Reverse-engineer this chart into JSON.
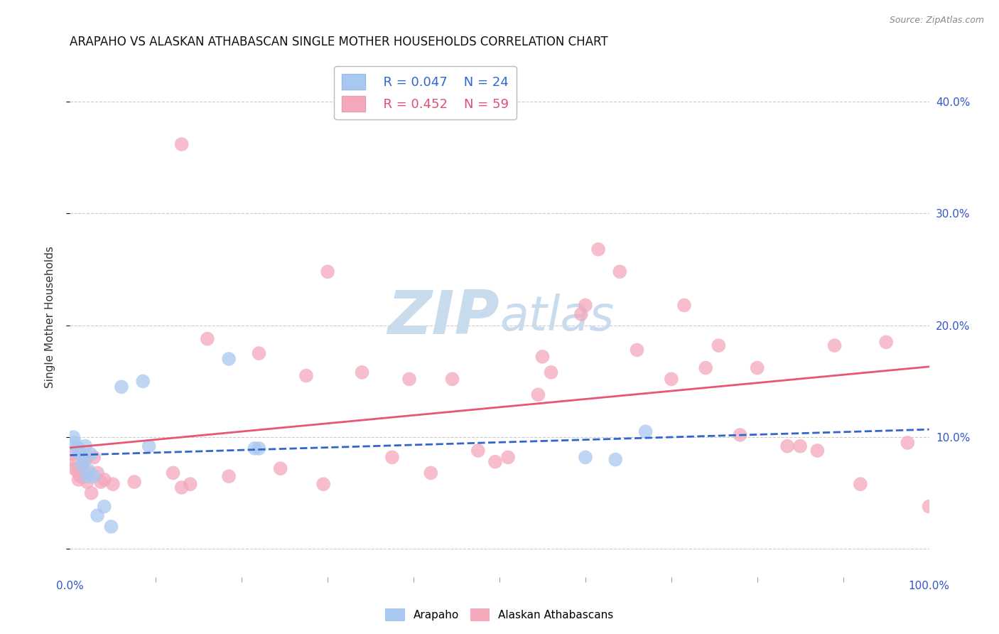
{
  "title": "ARAPAHO VS ALASKAN ATHABASCAN SINGLE MOTHER HOUSEHOLDS CORRELATION CHART",
  "source": "Source: ZipAtlas.com",
  "ylabel": "Single Mother Households",
  "xlim": [
    0.0,
    1.0
  ],
  "ylim": [
    -0.025,
    0.44
  ],
  "yticks": [
    0.0,
    0.1,
    0.2,
    0.3,
    0.4
  ],
  "yticklabels": [
    "",
    "10.0%",
    "20.0%",
    "30.0%",
    "40.0%"
  ],
  "xtick_major": [
    0.0,
    1.0
  ],
  "xticklabels_major": [
    "0.0%",
    "100.0%"
  ],
  "xtick_minor": [
    0.1,
    0.2,
    0.3,
    0.4,
    0.5,
    0.6,
    0.7,
    0.8,
    0.9
  ],
  "arapaho_R": 0.047,
  "arapaho_N": 24,
  "athabascan_R": 0.452,
  "athabascan_N": 59,
  "arapaho_color": "#A8C8F0",
  "athabascan_color": "#F4A8BC",
  "arapaho_line_color": "#3366CC",
  "athabascan_line_color": "#E85575",
  "arapaho_marker_edge": "#7AAAD8",
  "athabascan_marker_edge": "#E890A8",
  "arapaho_x": [
    0.004,
    0.006,
    0.008,
    0.01,
    0.012,
    0.014,
    0.016,
    0.018,
    0.02,
    0.022,
    0.024,
    0.028,
    0.032,
    0.04,
    0.048,
    0.06,
    0.085,
    0.092,
    0.185,
    0.215,
    0.22,
    0.6,
    0.635,
    0.67
  ],
  "arapaho_y": [
    0.1,
    0.095,
    0.09,
    0.09,
    0.085,
    0.075,
    0.08,
    0.092,
    0.065,
    0.07,
    0.085,
    0.065,
    0.03,
    0.038,
    0.02,
    0.145,
    0.15,
    0.092,
    0.17,
    0.09,
    0.09,
    0.082,
    0.08,
    0.105
  ],
  "athabascan_x": [
    0.003,
    0.005,
    0.007,
    0.008,
    0.01,
    0.012,
    0.014,
    0.016,
    0.018,
    0.02,
    0.022,
    0.025,
    0.028,
    0.032,
    0.036,
    0.04,
    0.05,
    0.075,
    0.12,
    0.13,
    0.14,
    0.16,
    0.185,
    0.22,
    0.245,
    0.275,
    0.295,
    0.34,
    0.375,
    0.395,
    0.42,
    0.445,
    0.475,
    0.495,
    0.51,
    0.545,
    0.56,
    0.595,
    0.6,
    0.615,
    0.64,
    0.66,
    0.7,
    0.715,
    0.74,
    0.755,
    0.78,
    0.8,
    0.835,
    0.85,
    0.87,
    0.89,
    0.92,
    0.95,
    0.975,
    1.0,
    0.13,
    0.3,
    0.55
  ],
  "athabascan_y": [
    0.085,
    0.072,
    0.078,
    0.07,
    0.062,
    0.065,
    0.075,
    0.068,
    0.08,
    0.06,
    0.068,
    0.05,
    0.082,
    0.068,
    0.06,
    0.062,
    0.058,
    0.06,
    0.068,
    0.055,
    0.058,
    0.188,
    0.065,
    0.175,
    0.072,
    0.155,
    0.058,
    0.158,
    0.082,
    0.152,
    0.068,
    0.152,
    0.088,
    0.078,
    0.082,
    0.138,
    0.158,
    0.21,
    0.218,
    0.268,
    0.248,
    0.178,
    0.152,
    0.218,
    0.162,
    0.182,
    0.102,
    0.162,
    0.092,
    0.092,
    0.088,
    0.182,
    0.058,
    0.185,
    0.095,
    0.038,
    0.362,
    0.248,
    0.172
  ],
  "watermark_zip": "ZIP",
  "watermark_atlas": "atlas",
  "watermark_color": "#C8DCEE",
  "background_color": "#FFFFFF",
  "grid_color": "#CCCCCC",
  "legend_box_color": "#BBBBBB"
}
